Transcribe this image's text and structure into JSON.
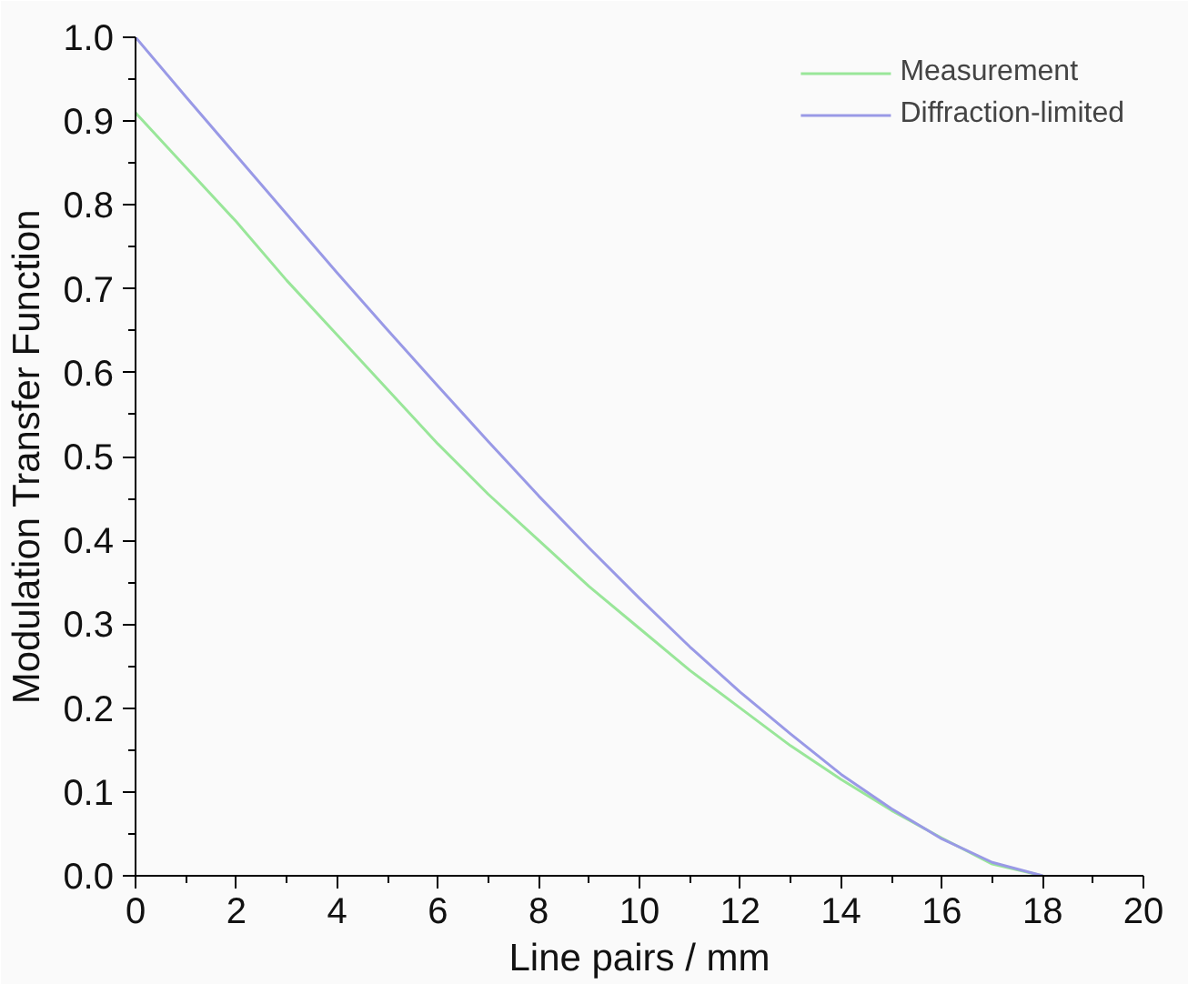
{
  "chart_data": {
    "type": "line",
    "xlabel": "Line pairs / mm",
    "ylabel": "Modulation Transfer Function",
    "x": [
      0,
      1,
      2,
      3,
      4,
      5,
      6,
      7,
      8,
      9,
      10,
      11,
      12,
      13,
      14,
      15,
      16,
      17,
      18
    ],
    "series": [
      {
        "name": "Measurement",
        "color": "#99e699",
        "values": [
          0.91,
          0.845,
          0.78,
          0.71,
          0.645,
          0.58,
          0.515,
          0.455,
          0.4,
          0.345,
          0.295,
          0.245,
          0.2,
          0.155,
          0.115,
          0.078,
          0.045,
          0.014,
          0
        ]
      },
      {
        "name": "Diffraction-limited",
        "color": "#9999e6",
        "values": [
          1,
          0.929,
          0.859,
          0.789,
          0.719,
          0.651,
          0.584,
          0.518,
          0.453,
          0.391,
          0.331,
          0.273,
          0.219,
          0.169,
          0.121,
          0.08,
          0.044,
          0.016,
          0
        ]
      }
    ],
    "xlim": [
      0,
      20
    ],
    "xticks": [
      0,
      2,
      4,
      6,
      8,
      10,
      12,
      14,
      16,
      18,
      20
    ],
    "ylim": [
      0,
      1
    ],
    "yticks": [
      "0.0",
      0.1,
      0.2,
      0.3,
      0.4,
      0.5,
      0.6,
      0.7,
      0.8,
      0.9,
      "1.0"
    ],
    "grid": false,
    "legend": "top right",
    "line_style": "solid",
    "marker": "none"
  }
}
